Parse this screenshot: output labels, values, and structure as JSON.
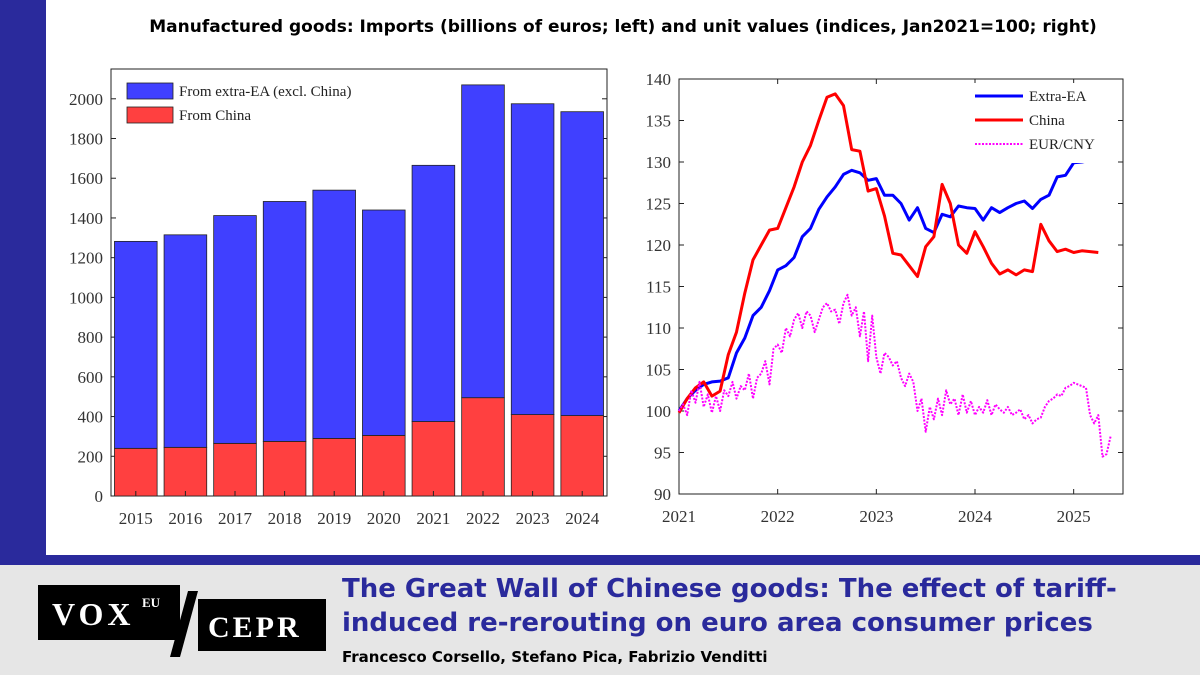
{
  "header": {
    "title": "Manufactured goods: Imports (billions of euros; left) and unit values (indices, Jan2021=100; right)"
  },
  "chart_data": [
    {
      "type": "bar",
      "stacked": true,
      "categories": [
        "2015",
        "2016",
        "2017",
        "2018",
        "2019",
        "2020",
        "2021",
        "2022",
        "2023",
        "2024"
      ],
      "series": [
        {
          "name": "From China",
          "color": "#ff4040",
          "values": [
            240,
            245,
            265,
            275,
            290,
            305,
            375,
            495,
            410,
            405
          ]
        },
        {
          "name": "From extra-EA (excl. China)",
          "color": "#4040ff",
          "values": [
            1042,
            1070,
            1147,
            1208,
            1250,
            1135,
            1290,
            1575,
            1565,
            1530
          ]
        }
      ],
      "legend": [
        {
          "label": "From extra-EA (excl. China)",
          "color": "#4040ff"
        },
        {
          "label": "From China",
          "color": "#ff4040"
        }
      ],
      "yticks": [
        0,
        200,
        400,
        600,
        800,
        1000,
        1200,
        1400,
        1600,
        1800,
        2000
      ],
      "ylim": [
        0,
        2150
      ],
      "legend_position": "top-left",
      "grid": false
    },
    {
      "type": "line",
      "xticks": [
        "2021",
        "2022",
        "2023",
        "2024",
        "2025"
      ],
      "xlim": [
        2021.0,
        2025.5
      ],
      "yticks": [
        90,
        95,
        100,
        105,
        110,
        115,
        120,
        125,
        130,
        135,
        140
      ],
      "ylim": [
        90,
        140
      ],
      "legend_position": "top-right",
      "grid": false,
      "series": [
        {
          "name": "Extra-EA",
          "color": "#0000ff",
          "style": "solid",
          "x": [
            2021.0,
            2021.083,
            2021.167,
            2021.25,
            2021.333,
            2021.417,
            2021.5,
            2021.583,
            2021.667,
            2021.75,
            2021.833,
            2021.917,
            2022.0,
            2022.083,
            2022.167,
            2022.25,
            2022.333,
            2022.417,
            2022.5,
            2022.583,
            2022.667,
            2022.75,
            2022.833,
            2022.917,
            2023.0,
            2023.083,
            2023.167,
            2023.25,
            2023.333,
            2023.417,
            2023.5,
            2023.583,
            2023.667,
            2023.75,
            2023.833,
            2023.917,
            2024.0,
            2024.083,
            2024.167,
            2024.25,
            2024.333,
            2024.417,
            2024.5,
            2024.583,
            2024.667,
            2024.75,
            2024.833,
            2024.917,
            2025.0,
            2025.083,
            2025.167
          ],
          "y": [
            100,
            101.5,
            102.5,
            103.2,
            103.5,
            103.6,
            104,
            107,
            108.8,
            111.5,
            112.5,
            114.5,
            117,
            117.5,
            118.5,
            121,
            122,
            124.3,
            125.8,
            127,
            128.5,
            129,
            128.7,
            127.8,
            128,
            126,
            126,
            125,
            123,
            124.5,
            122,
            121.5,
            123.7,
            123.4,
            124.7,
            124.5,
            124.4,
            123,
            124.5,
            123.9,
            124.5,
            125,
            125.3,
            124.4,
            125.5,
            126,
            128.2,
            128.4,
            129.9,
            130,
            130.2
          ]
        },
        {
          "name": "China",
          "color": "#ff0000",
          "style": "solid",
          "x": [
            2021.0,
            2021.083,
            2021.167,
            2021.25,
            2021.333,
            2021.417,
            2021.5,
            2021.583,
            2021.667,
            2021.75,
            2021.833,
            2021.917,
            2022.0,
            2022.083,
            2022.167,
            2022.25,
            2022.333,
            2022.417,
            2022.5,
            2022.583,
            2022.667,
            2022.75,
            2022.833,
            2022.917,
            2023.0,
            2023.083,
            2023.167,
            2023.25,
            2023.333,
            2023.417,
            2023.5,
            2023.583,
            2023.667,
            2023.75,
            2023.833,
            2023.917,
            2024.0,
            2024.083,
            2024.167,
            2024.25,
            2024.333,
            2024.417,
            2024.5,
            2024.583,
            2024.667,
            2024.75,
            2024.833,
            2024.917,
            2025.0,
            2025.083,
            2025.167,
            2025.25
          ],
          "y": [
            99.8,
            101.5,
            102.8,
            103.5,
            101.8,
            102.4,
            106.8,
            109.5,
            114.2,
            118.2,
            120,
            121.8,
            122,
            124.5,
            127,
            130,
            132,
            135,
            137.8,
            138.2,
            136.8,
            131.5,
            131.3,
            126.5,
            126.8,
            123.5,
            119,
            118.8,
            117.5,
            116.2,
            119.8,
            121,
            127.3,
            125,
            120,
            119,
            121.6,
            119.8,
            117.8,
            116.5,
            117,
            116.4,
            117,
            116.8,
            122.5,
            120.5,
            119.2,
            119.5,
            119.1,
            119.3,
            119.2,
            119.1
          ]
        },
        {
          "name": "EUR/CNY",
          "color": "#ff00ff",
          "style": "dotted",
          "x": [
            2021.0,
            2021.042,
            2021.083,
            2021.125,
            2021.167,
            2021.208,
            2021.25,
            2021.292,
            2021.333,
            2021.375,
            2021.417,
            2021.458,
            2021.5,
            2021.542,
            2021.583,
            2021.625,
            2021.667,
            2021.708,
            2021.75,
            2021.792,
            2021.833,
            2021.875,
            2021.917,
            2021.958,
            2022.0,
            2022.042,
            2022.083,
            2022.125,
            2022.167,
            2022.208,
            2022.25,
            2022.292,
            2022.333,
            2022.375,
            2022.417,
            2022.458,
            2022.5,
            2022.542,
            2022.583,
            2022.625,
            2022.667,
            2022.708,
            2022.75,
            2022.792,
            2022.833,
            2022.875,
            2022.917,
            2022.958,
            2023.0,
            2023.042,
            2023.083,
            2023.125,
            2023.167,
            2023.208,
            2023.25,
            2023.292,
            2023.333,
            2023.375,
            2023.417,
            2023.458,
            2023.5,
            2023.542,
            2023.583,
            2023.625,
            2023.667,
            2023.708,
            2023.75,
            2023.792,
            2023.833,
            2023.875,
            2023.917,
            2023.958,
            2024.0,
            2024.042,
            2024.083,
            2024.125,
            2024.167,
            2024.208,
            2024.25,
            2024.292,
            2024.333,
            2024.375,
            2024.417,
            2024.458,
            2024.5,
            2024.542,
            2024.583,
            2024.625,
            2024.667,
            2024.708,
            2024.75,
            2024.792,
            2024.833,
            2024.875,
            2024.917,
            2024.958,
            2025.0,
            2025.042,
            2025.083,
            2025.125,
            2025.167,
            2025.208,
            2025.25,
            2025.292,
            2025.333,
            2025.375
          ],
          "y": [
            100,
            100.8,
            99.5,
            102.5,
            101,
            103.5,
            100.5,
            102,
            99.8,
            101.8,
            100,
            102.5,
            101.8,
            103.5,
            101.5,
            103,
            102.5,
            104.5,
            101.5,
            104,
            104.5,
            106,
            103.2,
            107.5,
            108,
            107,
            110,
            109,
            111,
            111.8,
            110,
            112,
            111.5,
            109.5,
            111,
            112.5,
            113,
            112,
            112.2,
            110.5,
            113,
            114,
            111.5,
            112.5,
            109,
            112,
            106,
            111.5,
            106.5,
            104.5,
            107,
            106.5,
            105.5,
            106,
            104,
            103,
            104.5,
            103.5,
            100,
            101.5,
            97.5,
            100.5,
            99,
            101.5,
            99.5,
            102.5,
            100.8,
            101.5,
            99.5,
            102,
            99.8,
            101.2,
            99.5,
            100.5,
            99.8,
            101.3,
            99.5,
            100.8,
            100.2,
            99.8,
            100.5,
            99.5,
            99.8,
            100.2,
            99,
            99.5,
            98.5,
            99,
            99.2,
            100.5,
            101.2,
            101.5,
            102,
            101.8,
            102.8,
            103,
            103.4,
            103.2,
            103,
            102.8,
            99.5,
            98.5,
            99.5,
            94.5,
            94.8,
            97
          ]
        }
      ]
    }
  ],
  "footer": {
    "logo_vox": "VOX",
    "logo_eu": "EU",
    "logo_cepr": "CEPR",
    "article_title": "The Great Wall of Chinese goods: The effect of tariff-induced re-rerouting on euro area consumer prices",
    "authors": "Francesco Corsello, Stefano Pica, Fabrizio Venditti"
  }
}
